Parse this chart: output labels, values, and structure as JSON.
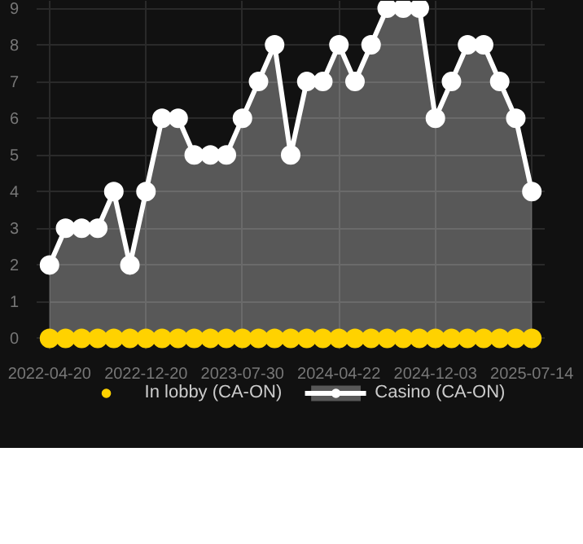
{
  "chart_data": {
    "type": "area",
    "categories": [
      "2022-04-20",
      null,
      null,
      null,
      null,
      null,
      "2022-12-20",
      null,
      null,
      null,
      null,
      null,
      "2023-07-30",
      null,
      null,
      null,
      null,
      null,
      "2024-04-22",
      null,
      null,
      null,
      null,
      null,
      "2024-12-03",
      null,
      null,
      null,
      null,
      null,
      "2025-07-14"
    ],
    "series": [
      {
        "name": "In lobby (CA-ON)",
        "color": "#ffd200",
        "type": "scatter",
        "values": [
          0,
          0,
          0,
          0,
          0,
          0,
          0,
          0,
          0,
          0,
          0,
          0,
          0,
          0,
          0,
          0,
          0,
          0,
          0,
          0,
          0,
          0,
          0,
          0,
          0,
          0,
          0,
          0,
          0,
          0,
          0
        ]
      },
      {
        "name": "Casino (CA-ON)",
        "color": "#ffffff",
        "values": [
          2,
          3,
          3,
          3,
          4,
          2,
          4,
          6,
          6,
          5,
          5,
          5,
          6,
          7,
          8,
          5,
          7,
          7,
          8,
          7,
          8,
          9,
          9,
          9,
          6,
          7,
          8,
          8,
          7,
          6,
          4
        ]
      }
    ],
    "ylim": [
      -0.3,
      9.2
    ],
    "yticks": [
      0,
      1,
      2,
      3,
      4,
      5,
      6,
      7,
      8,
      9
    ],
    "grid": true,
    "legend": "bottom",
    "marker": "circle"
  }
}
